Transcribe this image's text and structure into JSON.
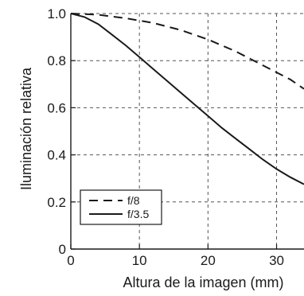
{
  "chart_data": {
    "type": "line",
    "xlabel": "Altura de la imagen (mm)",
    "ylabel": "Iluminación relativa",
    "xlim": [
      0,
      34
    ],
    "ylim": [
      0,
      1.0
    ],
    "x_ticks": [
      0,
      10,
      20,
      30
    ],
    "x_tick_labels": [
      "0",
      "10",
      "20",
      "30"
    ],
    "y_ticks": [
      0,
      0.2,
      0.4,
      0.6,
      0.8,
      1.0
    ],
    "y_tick_labels": [
      "0",
      "0.2",
      "0.4",
      "0.6",
      "0.8",
      "1.0"
    ],
    "grid": "dashed",
    "legend_position": "bottom-left",
    "series": [
      {
        "name": "f/8",
        "style": "dashed",
        "color": "#1a1a1a",
        "x": [
          0,
          4,
          8,
          12,
          16,
          20,
          24,
          28,
          32,
          34
        ],
        "y": [
          1.0,
          0.995,
          0.98,
          0.96,
          0.93,
          0.89,
          0.84,
          0.78,
          0.72,
          0.68
        ]
      },
      {
        "name": "f/3.5",
        "style": "solid",
        "color": "#1a1a1a",
        "x": [
          0,
          2,
          4,
          6,
          8,
          10,
          12,
          14,
          16,
          18,
          20,
          22,
          24,
          26,
          28,
          30,
          32,
          34
        ],
        "y": [
          1.0,
          0.985,
          0.955,
          0.91,
          0.865,
          0.815,
          0.765,
          0.715,
          0.665,
          0.615,
          0.565,
          0.515,
          0.47,
          0.425,
          0.38,
          0.34,
          0.305,
          0.275
        ]
      }
    ]
  }
}
